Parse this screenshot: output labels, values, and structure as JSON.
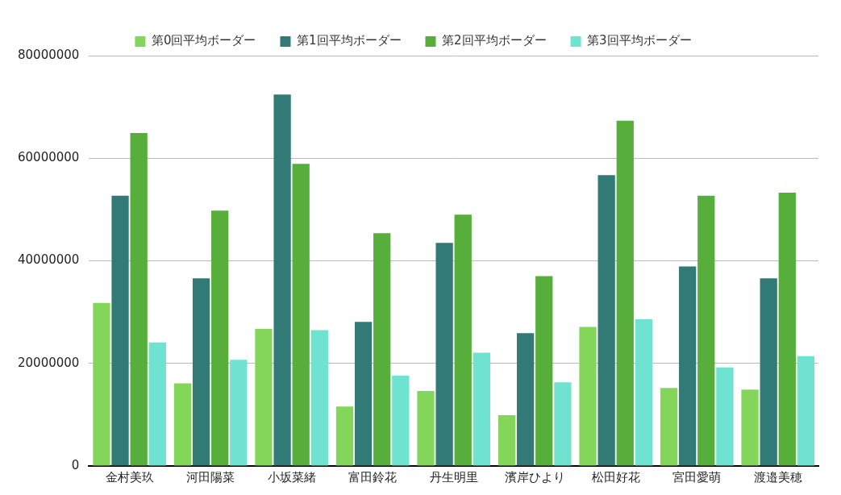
{
  "chart_data": {
    "type": "bar",
    "categories": [
      "金村美玖",
      "河田陽菜",
      "小坂菜緒",
      "富田鈴花",
      "丹生明里",
      "濱岸ひより",
      "松田好花",
      "宮田愛萌",
      "渡邉美穂"
    ],
    "series": [
      {
        "name": "第0回平均ボーダー",
        "color": "#84d65a",
        "values": [
          31800000,
          16100000,
          26700000,
          11600000,
          14600000,
          9900000,
          27100000,
          15200000,
          14900000
        ]
      },
      {
        "name": "第1回平均ボーダー",
        "color": "#327a76",
        "values": [
          52700000,
          36600000,
          72400000,
          28100000,
          43500000,
          25900000,
          56700000,
          38900000,
          36600000
        ]
      },
      {
        "name": "第2回平均ボーダー",
        "color": "#57ae3a",
        "values": [
          64900000,
          49800000,
          58900000,
          45400000,
          49000000,
          37000000,
          67300000,
          52700000,
          53300000
        ]
      },
      {
        "name": "第3回平均ボーダー",
        "color": "#6fe2d0",
        "values": [
          24100000,
          20700000,
          26500000,
          17600000,
          22100000,
          16300000,
          28600000,
          19200000,
          21400000
        ]
      }
    ],
    "ylim": [
      0,
      80000000
    ],
    "yticks": [
      0,
      20000000,
      40000000,
      60000000,
      80000000
    ],
    "grid": true,
    "legend": "top"
  }
}
